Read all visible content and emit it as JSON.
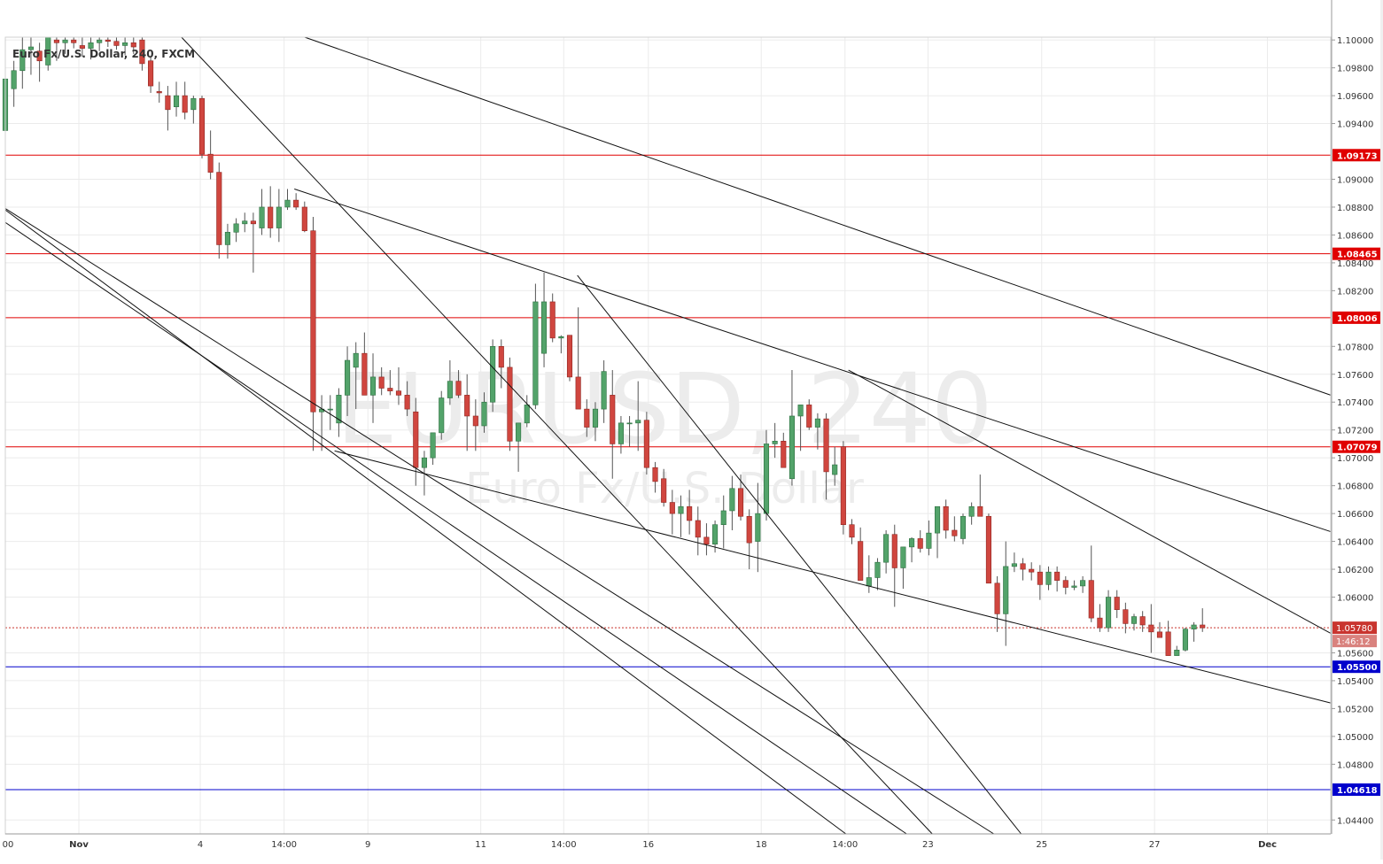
{
  "chart_data": {
    "type": "candlestick",
    "title": "Euro Fx/U.S. Dollar, 240, FXCM",
    "watermark": {
      "symbol": "EURUSD, 240",
      "description": "Euro Fx/U.S. Dollar"
    },
    "ylim": [
      1.043,
      1.1002
    ],
    "x_range": [
      0,
      155
    ],
    "grid": true,
    "y_ticks": [
      {
        "value": 1.1,
        "label": "1.10000"
      },
      {
        "value": 1.098,
        "label": "1.09800"
      },
      {
        "value": 1.096,
        "label": "1.09600"
      },
      {
        "value": 1.094,
        "label": "1.09400"
      },
      {
        "value": 1.09,
        "label": "1.09000"
      },
      {
        "value": 1.088,
        "label": "1.08800"
      },
      {
        "value": 1.086,
        "label": "1.08600"
      },
      {
        "value": 1.084,
        "label": "1.08400"
      },
      {
        "value": 1.082,
        "label": "1.08200"
      },
      {
        "value": 1.078,
        "label": "1.07800"
      },
      {
        "value": 1.076,
        "label": "1.07600"
      },
      {
        "value": 1.074,
        "label": "1.07400"
      },
      {
        "value": 1.072,
        "label": "1.07200"
      },
      {
        "value": 1.07,
        "label": "1.07000"
      },
      {
        "value": 1.068,
        "label": "1.06800"
      },
      {
        "value": 1.066,
        "label": "1.06600"
      },
      {
        "value": 1.064,
        "label": "1.06400"
      },
      {
        "value": 1.062,
        "label": "1.06200"
      },
      {
        "value": 1.06,
        "label": "1.06000"
      },
      {
        "value": 1.056,
        "label": "1.05600"
      },
      {
        "value": 1.054,
        "label": "1.05400"
      },
      {
        "value": 1.052,
        "label": "1.05200"
      },
      {
        "value": 1.05,
        "label": "1.05000"
      },
      {
        "value": 1.048,
        "label": "1.04800"
      },
      {
        "value": 1.044,
        "label": "1.04400"
      }
    ],
    "x_ticks": [
      {
        "x": -0.9,
        "label": "00"
      },
      {
        "x": 8.6,
        "label": "Nov"
      },
      {
        "x": 22.8,
        "label": "4"
      },
      {
        "x": 32.6,
        "label": "14:00"
      },
      {
        "x": 42.4,
        "label": "9"
      },
      {
        "x": 55.6,
        "label": "11"
      },
      {
        "x": 65.3,
        "label": "14:00"
      },
      {
        "x": 75.2,
        "label": "16"
      },
      {
        "x": 88.4,
        "label": "18"
      },
      {
        "x": 98.2,
        "label": "14:00"
      },
      {
        "x": 107.9,
        "label": "23"
      },
      {
        "x": 121.2,
        "label": "25"
      },
      {
        "x": 134.4,
        "label": "27"
      },
      {
        "x": 147.6,
        "label": "Dec"
      }
    ],
    "horizontal_levels": [
      {
        "value": 1.09173,
        "label": "1.09173",
        "color": "#e00000"
      },
      {
        "value": 1.08465,
        "label": "1.08465",
        "color": "#e00000"
      },
      {
        "value": 1.08006,
        "label": "1.08006",
        "color": "#e00000"
      },
      {
        "value": 1.07079,
        "label": "1.07079",
        "color": "#e00000"
      },
      {
        "value": 1.055,
        "label": "1.05500",
        "color": "#0000cc"
      },
      {
        "value": 1.04618,
        "label": "1.04618",
        "color": "#0000cc"
      }
    ],
    "current_price": {
      "value": 1.0578,
      "label": "1.05780",
      "countdown": "1:46:12",
      "color": "#c9352f"
    },
    "trendlines": [
      {
        "x1": 35,
        "y1": 1.1002,
        "x2": 155,
        "y2": 1.0745
      },
      {
        "x1": 33.8,
        "y1": 1.0893,
        "x2": 155,
        "y2": 1.0647
      },
      {
        "x1": 98.6,
        "y1": 1.0763,
        "x2": 155,
        "y2": 1.0574
      },
      {
        "x1": 38.5,
        "y1": 1.0705,
        "x2": 155,
        "y2": 1.0524
      },
      {
        "x1": 20.6,
        "y1": 1.1002,
        "x2": 108.4,
        "y2": 1.043
      },
      {
        "x1": 66.9,
        "y1": 1.0831,
        "x2": 118.8,
        "y2": 1.043
      },
      {
        "x1": 0,
        "y1": 1.0879,
        "x2": 115.6,
        "y2": 1.043
      },
      {
        "x1": 0,
        "y1": 1.0878,
        "x2": 98.3,
        "y2": 1.043
      },
      {
        "x1": 0,
        "y1": 1.0869,
        "x2": 105.4,
        "y2": 1.043
      }
    ],
    "ohlc": [
      [
        1.0935,
        1.0975,
        1.093,
        1.0972
      ],
      [
        1.0965,
        1.0985,
        1.0952,
        1.0978
      ],
      [
        1.0978,
        1.1002,
        1.0965,
        1.0993
      ],
      [
        1.0993,
        1.1002,
        1.0975,
        1.0995
      ],
      [
        1.0992,
        1.0998,
        1.097,
        1.0985
      ],
      [
        1.0982,
        1.1002,
        1.0978,
        1.1002
      ],
      [
        1.1,
        1.1002,
        1.0985,
        1.0998
      ],
      [
        1.0998,
        1.1002,
        1.099,
        1.1
      ],
      [
        1.1,
        1.1002,
        1.0994,
        1.0998
      ],
      [
        1.0996,
        1.1002,
        1.0988,
        1.0994
      ],
      [
        1.0994,
        1.1002,
        1.0986,
        1.0998
      ],
      [
        1.0998,
        1.1002,
        1.0992,
        1.1
      ],
      [
        1.1,
        1.1002,
        1.0995,
        1.0999
      ],
      [
        1.0999,
        1.1002,
        1.0993,
        1.0996
      ],
      [
        1.0996,
        1.1002,
        1.0989,
        1.0998
      ],
      [
        1.0998,
        1.1002,
        1.099,
        1.0995
      ],
      [
        1.1,
        1.1002,
        1.0978,
        1.0983
      ],
      [
        1.0985,
        1.0988,
        1.0962,
        1.0967
      ],
      [
        1.0963,
        1.097,
        1.0955,
        1.0962
      ],
      [
        1.096,
        1.0967,
        1.0935,
        1.095
      ],
      [
        1.0952,
        1.097,
        1.0945,
        1.096
      ],
      [
        1.096,
        1.097,
        1.0943,
        1.0948
      ],
      [
        1.095,
        1.096,
        1.094,
        1.0958
      ],
      [
        1.0958,
        1.096,
        1.0915,
        1.0918
      ],
      [
        1.0918,
        1.0935,
        1.09,
        1.0905
      ],
      [
        1.0905,
        1.0912,
        1.0843,
        1.0853
      ],
      [
        1.0853,
        1.0868,
        1.0843,
        1.0862
      ],
      [
        1.0862,
        1.0872,
        1.0855,
        1.0868
      ],
      [
        1.0868,
        1.0876,
        1.0862,
        1.087
      ],
      [
        1.087,
        1.0876,
        1.0833,
        1.0868
      ],
      [
        1.0865,
        1.0893,
        1.086,
        1.088
      ],
      [
        1.088,
        1.0895,
        1.0858,
        1.0865
      ],
      [
        1.0865,
        1.0893,
        1.0855,
        1.088
      ],
      [
        1.088,
        1.0893,
        1.0878,
        1.0885
      ],
      [
        1.0885,
        1.089,
        1.0878,
        1.088
      ],
      [
        1.088,
        1.0884,
        1.0862,
        1.0863
      ],
      [
        1.0863,
        1.0873,
        1.0705,
        1.0733
      ],
      [
        1.0733,
        1.0745,
        1.0705,
        1.0735
      ],
      [
        1.0735,
        1.0745,
        1.072,
        1.0735
      ],
      [
        1.0725,
        1.075,
        1.0715,
        1.0745
      ],
      [
        1.0745,
        1.078,
        1.073,
        1.077
      ],
      [
        1.0765,
        1.0783,
        1.0735,
        1.0775
      ],
      [
        1.0775,
        1.079,
        1.0745,
        1.0745
      ],
      [
        1.0745,
        1.0775,
        1.0725,
        1.0758
      ],
      [
        1.0758,
        1.0765,
        1.0745,
        1.075
      ],
      [
        1.075,
        1.0763,
        1.0745,
        1.0748
      ],
      [
        1.0748,
        1.0765,
        1.0738,
        1.0745
      ],
      [
        1.0745,
        1.0755,
        1.073,
        1.0735
      ],
      [
        1.0733,
        1.0743,
        1.068,
        1.0693
      ],
      [
        1.0693,
        1.0705,
        1.0673,
        1.07
      ],
      [
        1.07,
        1.0718,
        1.0695,
        1.0718
      ],
      [
        1.0718,
        1.0748,
        1.0713,
        1.0743
      ],
      [
        1.0743,
        1.077,
        1.0738,
        1.0755
      ],
      [
        1.0755,
        1.0763,
        1.0743,
        1.0745
      ],
      [
        1.0745,
        1.076,
        1.0705,
        1.073
      ],
      [
        1.073,
        1.0742,
        1.0705,
        1.0723
      ],
      [
        1.0723,
        1.0747,
        1.0718,
        1.074
      ],
      [
        1.074,
        1.0785,
        1.0733,
        1.078
      ],
      [
        1.078,
        1.0785,
        1.075,
        1.0765
      ],
      [
        1.0765,
        1.0772,
        1.0705,
        1.0712
      ],
      [
        1.0712,
        1.0725,
        1.069,
        1.0725
      ],
      [
        1.0725,
        1.0745,
        1.0722,
        1.0738
      ],
      [
        1.0738,
        1.0825,
        1.0735,
        1.0812
      ],
      [
        1.0775,
        1.0833,
        1.0765,
        1.0812
      ],
      [
        1.0812,
        1.0818,
        1.0783,
        1.0786
      ],
      [
        1.0786,
        1.0788,
        1.0775,
        1.0787
      ],
      [
        1.0788,
        1.0788,
        1.0755,
        1.0758
      ],
      [
        1.0758,
        1.0808,
        1.074,
        1.0735
      ],
      [
        1.0735,
        1.0742,
        1.0715,
        1.0722
      ],
      [
        1.0722,
        1.074,
        1.0712,
        1.0735
      ],
      [
        1.0735,
        1.077,
        1.0725,
        1.0762
      ],
      [
        1.0745,
        1.0763,
        1.0685,
        1.071
      ],
      [
        1.071,
        1.073,
        1.0703,
        1.0725
      ],
      [
        1.0725,
        1.073,
        1.0708,
        1.0725
      ],
      [
        1.0725,
        1.0755,
        1.0705,
        1.0727
      ],
      [
        1.0727,
        1.0733,
        1.0688,
        1.0693
      ],
      [
        1.0693,
        1.0697,
        1.0675,
        1.0683
      ],
      [
        1.0685,
        1.0692,
        1.0665,
        1.0668
      ],
      [
        1.0668,
        1.0677,
        1.0645,
        1.066
      ],
      [
        1.066,
        1.0673,
        1.0643,
        1.0665
      ],
      [
        1.0665,
        1.0677,
        1.0645,
        1.0655
      ],
      [
        1.0655,
        1.0665,
        1.063,
        1.0643
      ],
      [
        1.0643,
        1.0653,
        1.063,
        1.0638
      ],
      [
        1.0638,
        1.0655,
        1.0632,
        1.0652
      ],
      [
        1.0652,
        1.0673,
        1.0635,
        1.0662
      ],
      [
        1.0662,
        1.0687,
        1.0648,
        1.0678
      ],
      [
        1.0678,
        1.0688,
        1.0655,
        1.0658
      ],
      [
        1.0658,
        1.0663,
        1.062,
        1.0639
      ],
      [
        1.064,
        1.0682,
        1.0618,
        1.066
      ],
      [
        1.066,
        1.072,
        1.0655,
        1.071
      ],
      [
        1.071,
        1.0725,
        1.07,
        1.0712
      ],
      [
        1.0712,
        1.0718,
        1.0695,
        1.0693
      ],
      [
        1.0685,
        1.0763,
        1.068,
        1.073
      ],
      [
        1.073,
        1.0738,
        1.0705,
        1.0738
      ],
      [
        1.0738,
        1.0742,
        1.072,
        1.0722
      ],
      [
        1.0722,
        1.0732,
        1.0706,
        1.0728
      ],
      [
        1.0728,
        1.0732,
        1.067,
        1.069
      ],
      [
        1.0688,
        1.0708,
        1.068,
        1.0695
      ],
      [
        1.0708,
        1.0712,
        1.0645,
        1.0652
      ],
      [
        1.0652,
        1.0656,
        1.0638,
        1.0643
      ],
      [
        1.064,
        1.065,
        1.0612,
        1.0612
      ],
      [
        1.0608,
        1.063,
        1.0603,
        1.0614
      ],
      [
        1.0614,
        1.0628,
        1.0605,
        1.0625
      ],
      [
        1.0625,
        1.0648,
        1.0617,
        1.0645
      ],
      [
        1.0645,
        1.0652,
        1.0593,
        1.0621
      ],
      [
        1.0621,
        1.0636,
        1.0606,
        1.0636
      ],
      [
        1.0636,
        1.0643,
        1.0625,
        1.0642
      ],
      [
        1.0642,
        1.0648,
        1.0632,
        1.0635
      ],
      [
        1.0635,
        1.0655,
        1.063,
        1.0646
      ],
      [
        1.0646,
        1.0662,
        1.0628,
        1.0665
      ],
      [
        1.0665,
        1.067,
        1.0642,
        1.0648
      ],
      [
        1.0648,
        1.0658,
        1.064,
        1.0644
      ],
      [
        1.0642,
        1.066,
        1.0638,
        1.0658
      ],
      [
        1.0658,
        1.0668,
        1.0652,
        1.0665
      ],
      [
        1.0665,
        1.0688,
        1.0658,
        1.0658
      ],
      [
        1.0658,
        1.066,
        1.061,
        1.061
      ],
      [
        1.061,
        1.0615,
        1.0575,
        1.0588
      ],
      [
        1.0588,
        1.064,
        1.0565,
        1.0622
      ],
      [
        1.0622,
        1.0632,
        1.0618,
        1.0624
      ],
      [
        1.0624,
        1.0628,
        1.0612,
        1.062
      ],
      [
        1.062,
        1.0625,
        1.0612,
        1.0618
      ],
      [
        1.0618,
        1.0623,
        1.0598,
        1.0609
      ],
      [
        1.0609,
        1.0622,
        1.0605,
        1.0618
      ],
      [
        1.0618,
        1.0622,
        1.0604,
        1.0612
      ],
      [
        1.0612,
        1.0615,
        1.0602,
        1.0607
      ],
      [
        1.0607,
        1.0612,
        1.0605,
        1.0608
      ],
      [
        1.0608,
        1.0615,
        1.0603,
        1.0612
      ],
      [
        1.0612,
        1.0637,
        1.0582,
        1.0585
      ],
      [
        1.0585,
        1.0595,
        1.0575,
        1.0578
      ],
      [
        1.0578,
        1.0605,
        1.0575,
        1.06
      ],
      [
        1.06,
        1.0605,
        1.0585,
        1.0591
      ],
      [
        1.0591,
        1.0596,
        1.0574,
        1.0581
      ],
      [
        1.0581,
        1.0588,
        1.0576,
        1.0586
      ],
      [
        1.0586,
        1.059,
        1.0575,
        1.058
      ],
      [
        1.058,
        1.0595,
        1.056,
        1.0575
      ],
      [
        1.0575,
        1.0582,
        1.0572,
        1.0571
      ],
      [
        1.0575,
        1.0583,
        1.0558,
        1.0558
      ],
      [
        1.0558,
        1.0565,
        1.0558,
        1.0562
      ],
      [
        1.0562,
        1.0578,
        1.0561,
        1.0577
      ],
      [
        1.0577,
        1.0582,
        1.0568,
        1.058
      ],
      [
        1.058,
        1.0592,
        1.0575,
        1.0578
      ]
    ]
  }
}
